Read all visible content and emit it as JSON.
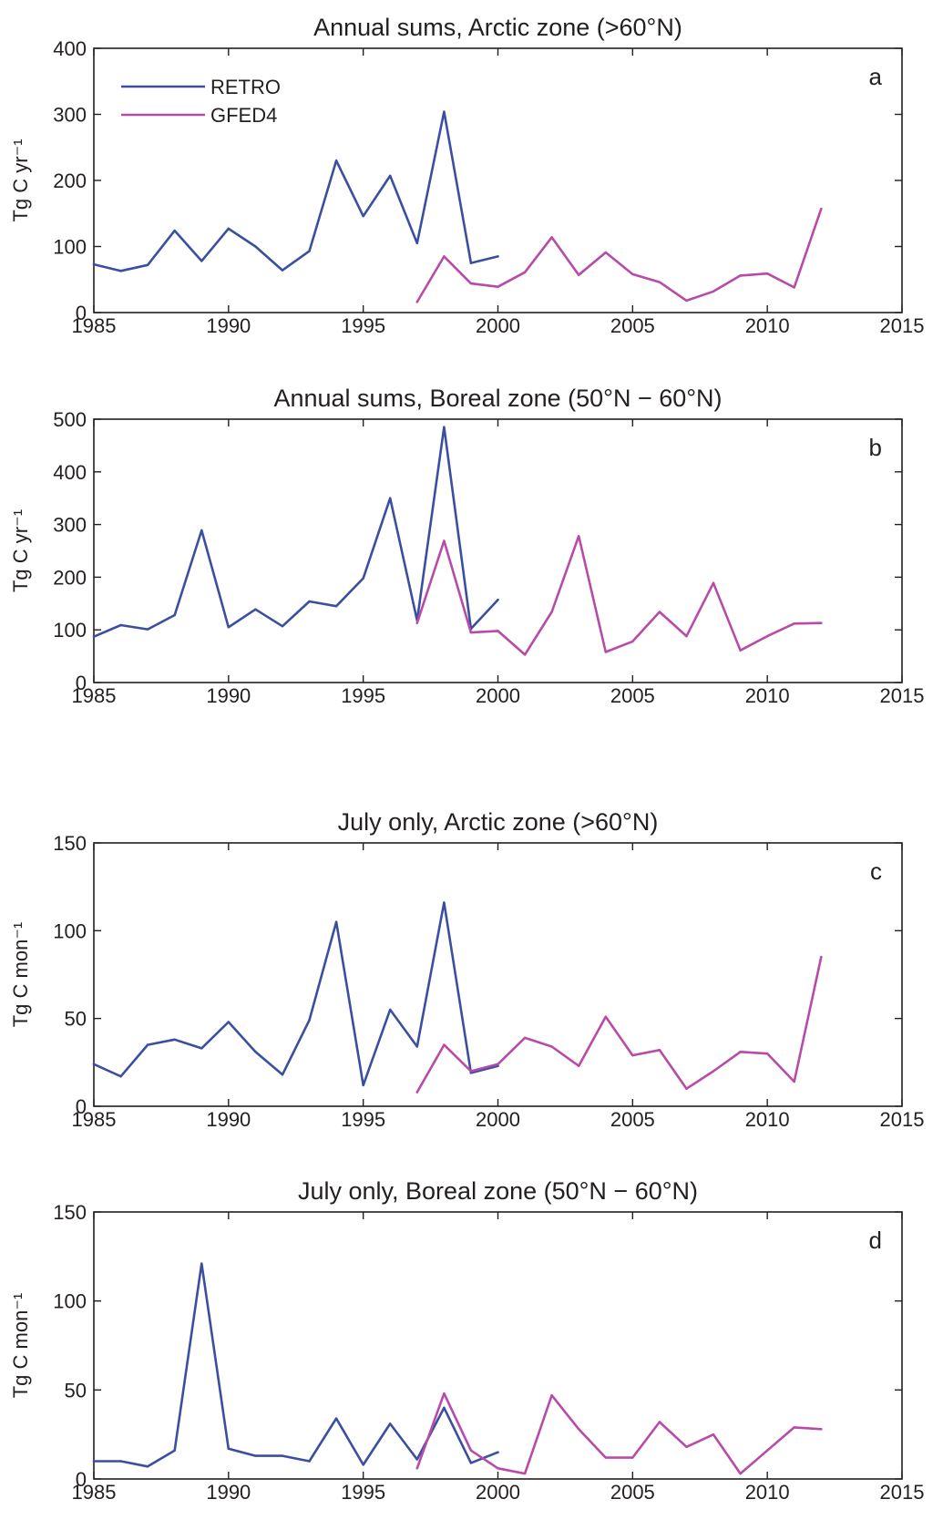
{
  "chart_data": [
    {
      "type": "line",
      "title": "Annual sums, Arctic zone (>60°N)",
      "panel_label": "a",
      "ylabel": "Tg C yr⁻¹",
      "xlim": [
        1985,
        2015
      ],
      "ylim": [
        0,
        400
      ],
      "xticks": [
        1985,
        1990,
        1995,
        2000,
        2005,
        2010,
        2015
      ],
      "yticks": [
        0,
        100,
        200,
        300,
        400
      ],
      "grid": false,
      "legend": {
        "placement": "top-left",
        "entries": [
          {
            "label": "RETRO",
            "color": "#3a4fa0"
          },
          {
            "label": "GFED4",
            "color": "#b84ba8"
          }
        ]
      },
      "series": [
        {
          "name": "RETRO",
          "color": "#3a4fa0",
          "x": [
            1985,
            1986,
            1987,
            1988,
            1989,
            1990,
            1991,
            1992,
            1993,
            1994,
            1995,
            1996,
            1997,
            1998,
            1999,
            2000
          ],
          "y": [
            73,
            63,
            72,
            124,
            78,
            127,
            100,
            64,
            93,
            230,
            146,
            207,
            105,
            304,
            75,
            85
          ]
        },
        {
          "name": "GFED4",
          "color": "#b84ba8",
          "x": [
            1997,
            1998,
            1999,
            2000,
            2001,
            2002,
            2003,
            2004,
            2005,
            2006,
            2007,
            2008,
            2009,
            2010,
            2011,
            2012
          ],
          "y": [
            16,
            85,
            44,
            39,
            61,
            114,
            57,
            91,
            58,
            46,
            18,
            32,
            56,
            59,
            38,
            157
          ]
        }
      ]
    },
    {
      "type": "line",
      "title": "Annual sums, Boreal zone (50°N − 60°N)",
      "panel_label": "b",
      "ylabel": "Tg C yr⁻¹",
      "xlim": [
        1985,
        2015
      ],
      "ylim": [
        0,
        500
      ],
      "xticks": [
        1985,
        1990,
        1995,
        2000,
        2005,
        2010,
        2015
      ],
      "yticks": [
        0,
        100,
        200,
        300,
        400,
        500
      ],
      "grid": false,
      "series": [
        {
          "name": "RETRO",
          "color": "#3a4fa0",
          "x": [
            1985,
            1986,
            1987,
            1988,
            1989,
            1990,
            1991,
            1992,
            1993,
            1994,
            1995,
            1996,
            1997,
            1998,
            1999,
            2000
          ],
          "y": [
            87,
            109,
            101,
            128,
            289,
            105,
            139,
            107,
            154,
            145,
            198,
            350,
            118,
            485,
            102,
            157
          ]
        },
        {
          "name": "GFED4",
          "color": "#b84ba8",
          "x": [
            1997,
            1998,
            1999,
            2000,
            2001,
            2002,
            2003,
            2004,
            2005,
            2006,
            2007,
            2008,
            2009,
            2010,
            2011,
            2012
          ],
          "y": [
            113,
            269,
            95,
            98,
            53,
            134,
            278,
            58,
            78,
            134,
            88,
            189,
            61,
            88,
            112,
            113
          ]
        }
      ]
    },
    {
      "type": "line",
      "title": "July only, Arctic zone (>60°N)",
      "panel_label": "c",
      "ylabel": "Tg C mon⁻¹",
      "xlim": [
        1985,
        2015
      ],
      "ylim": [
        0,
        150
      ],
      "xticks": [
        1985,
        1990,
        1995,
        2000,
        2005,
        2010,
        2015
      ],
      "yticks": [
        0,
        50,
        100,
        150
      ],
      "grid": false,
      "series": [
        {
          "name": "RETRO",
          "color": "#3a4fa0",
          "x": [
            1985,
            1986,
            1987,
            1988,
            1989,
            1990,
            1991,
            1992,
            1993,
            1994,
            1995,
            1996,
            1997,
            1998,
            1999,
            2000
          ],
          "y": [
            24,
            17,
            35,
            38,
            33,
            48,
            31,
            18,
            49,
            105,
            12,
            55,
            34,
            116,
            19,
            23
          ]
        },
        {
          "name": "GFED4",
          "color": "#b84ba8",
          "x": [
            1997,
            1998,
            1999,
            2000,
            2001,
            2002,
            2003,
            2004,
            2005,
            2006,
            2007,
            2008,
            2009,
            2010,
            2011,
            2012
          ],
          "y": [
            8,
            35,
            20,
            24,
            39,
            34,
            23,
            51,
            29,
            32,
            10,
            20,
            31,
            30,
            14,
            85
          ]
        }
      ]
    },
    {
      "type": "line",
      "title": "July only, Boreal zone (50°N − 60°N)",
      "panel_label": "d",
      "ylabel": "Tg C mon⁻¹",
      "xlim": [
        1985,
        2015
      ],
      "ylim": [
        0,
        150
      ],
      "xticks": [
        1985,
        1990,
        1995,
        2000,
        2005,
        2010,
        2015
      ],
      "yticks": [
        0,
        50,
        100,
        150
      ],
      "grid": false,
      "series": [
        {
          "name": "RETRO",
          "color": "#3a4fa0",
          "x": [
            1985,
            1986,
            1987,
            1988,
            1989,
            1990,
            1991,
            1992,
            1993,
            1994,
            1995,
            1996,
            1997,
            1998,
            1999,
            2000
          ],
          "y": [
            10,
            10,
            7,
            16,
            121,
            17,
            13,
            13,
            10,
            34,
            8,
            31,
            11,
            40,
            9,
            15
          ]
        },
        {
          "name": "GFED4",
          "color": "#b84ba8",
          "x": [
            1997,
            1998,
            1999,
            2000,
            2001,
            2002,
            2003,
            2004,
            2005,
            2006,
            2007,
            2008,
            2009,
            2010,
            2011,
            2012
          ],
          "y": [
            6,
            48,
            16,
            6,
            3,
            47,
            28,
            12,
            12,
            32,
            18,
            25,
            3,
            16,
            29,
            28
          ]
        }
      ]
    }
  ]
}
